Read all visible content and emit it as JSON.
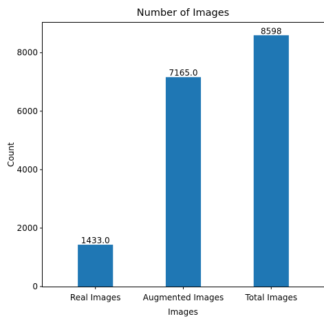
{
  "chart_data": {
    "type": "bar",
    "title": "Number of Images",
    "xlabel": "Images",
    "ylabel": "Count",
    "categories": [
      "Real Images",
      "Augmented Images",
      "Total Images"
    ],
    "values": [
      1433,
      7165,
      8598
    ],
    "data_labels": [
      "1433.0",
      "7165.0",
      "8598"
    ],
    "ylim": [
      0,
      9028
    ],
    "yticks": [
      0,
      2000,
      4000,
      6000,
      8000
    ],
    "grid": false,
    "bar_color": "#1f77b4"
  }
}
